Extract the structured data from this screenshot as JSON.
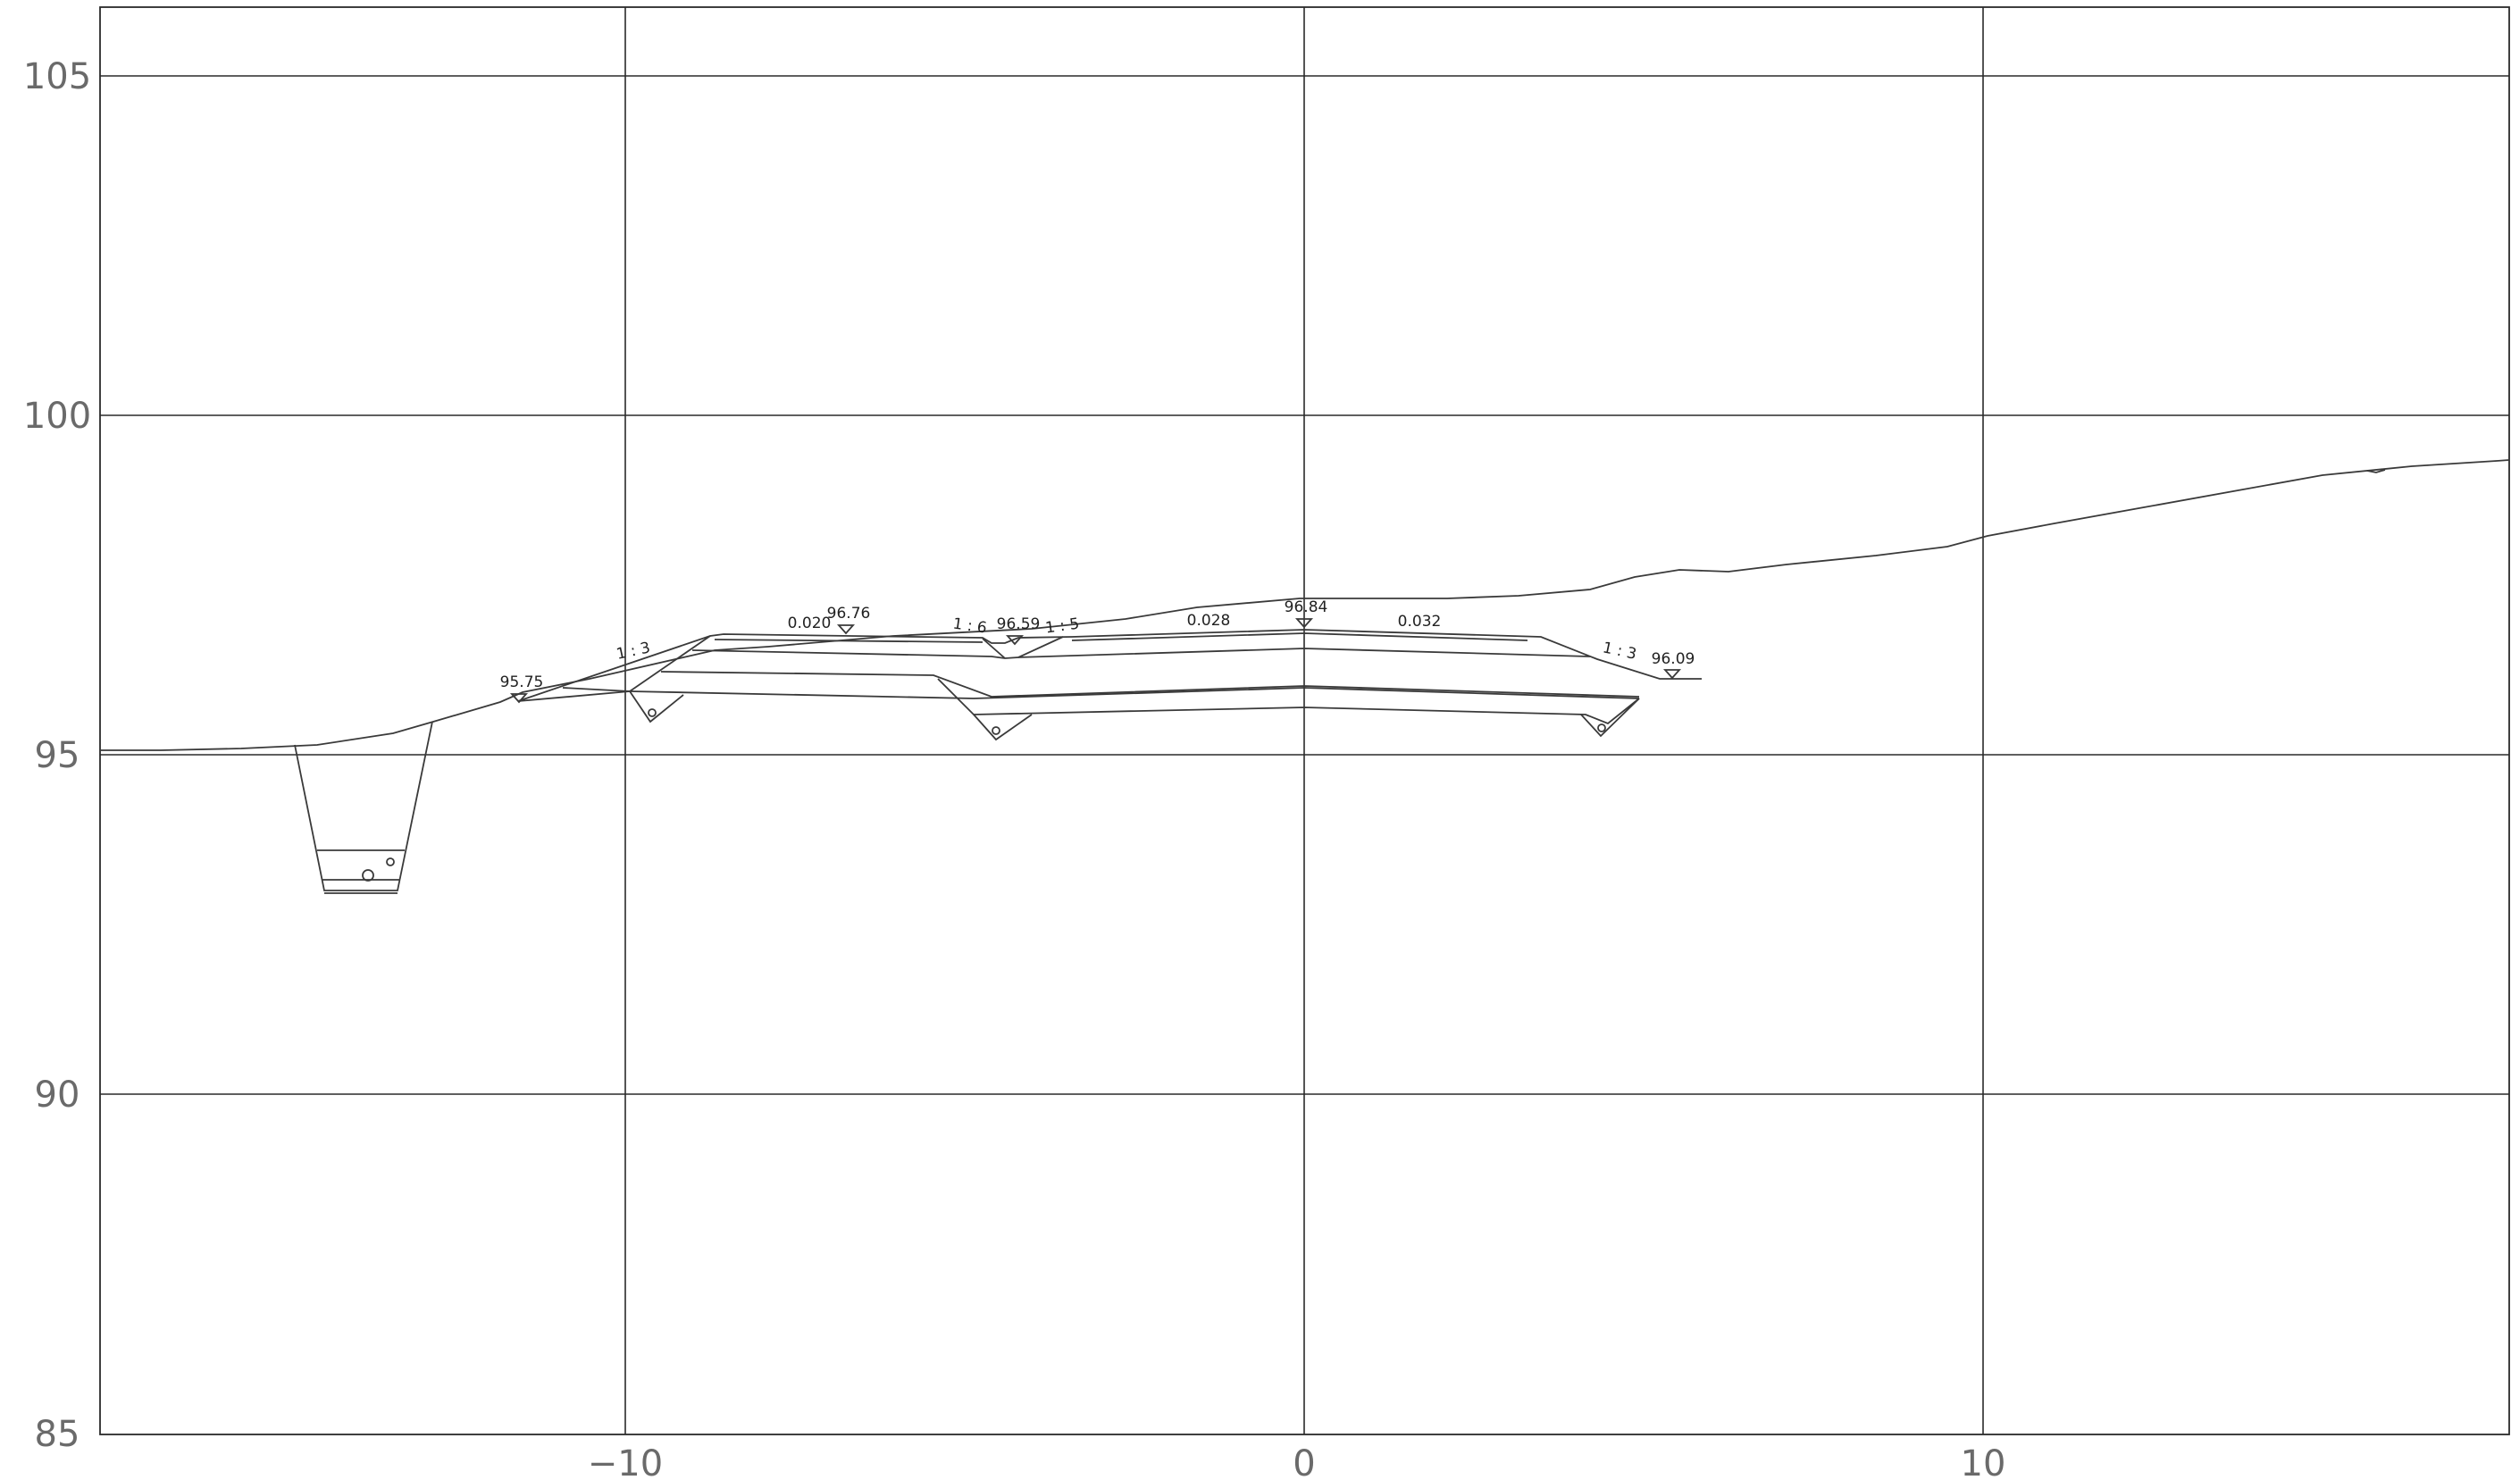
{
  "axes": {
    "x_ticks": [
      {
        "value": -10,
        "label": "−10"
      },
      {
        "value": 0,
        "label": "0"
      },
      {
        "value": 10,
        "label": "10"
      }
    ],
    "y_ticks": [
      {
        "value": 105,
        "label": "105"
      },
      {
        "value": 100,
        "label": "100"
      },
      {
        "value": 95,
        "label": "95"
      },
      {
        "value": 90,
        "label": "90"
      },
      {
        "value": 85,
        "label": "85"
      }
    ],
    "x_range": [
      -17.7,
      17.75
    ],
    "y_range": [
      85,
      106
    ]
  },
  "annotations": {
    "elev_left": "95.75",
    "elev_left_lane": "96.76",
    "elev_median": "96.59",
    "elev_center": "96.84",
    "elev_right": "96.09",
    "slope_left_fill": "1 : 3",
    "slope_median_left": "1 : 6",
    "slope_median_right": "1 : 5",
    "slope_right_fill": "1 : 3",
    "crossfall_left": "0.020",
    "crossfall_center_left": "0.028",
    "crossfall_center_right": "0.032"
  },
  "colors": {
    "line": "#3a3a3a",
    "grid": "#2a2a2a",
    "tick_text": "#6a6a6a",
    "background": "#ffffff"
  }
}
